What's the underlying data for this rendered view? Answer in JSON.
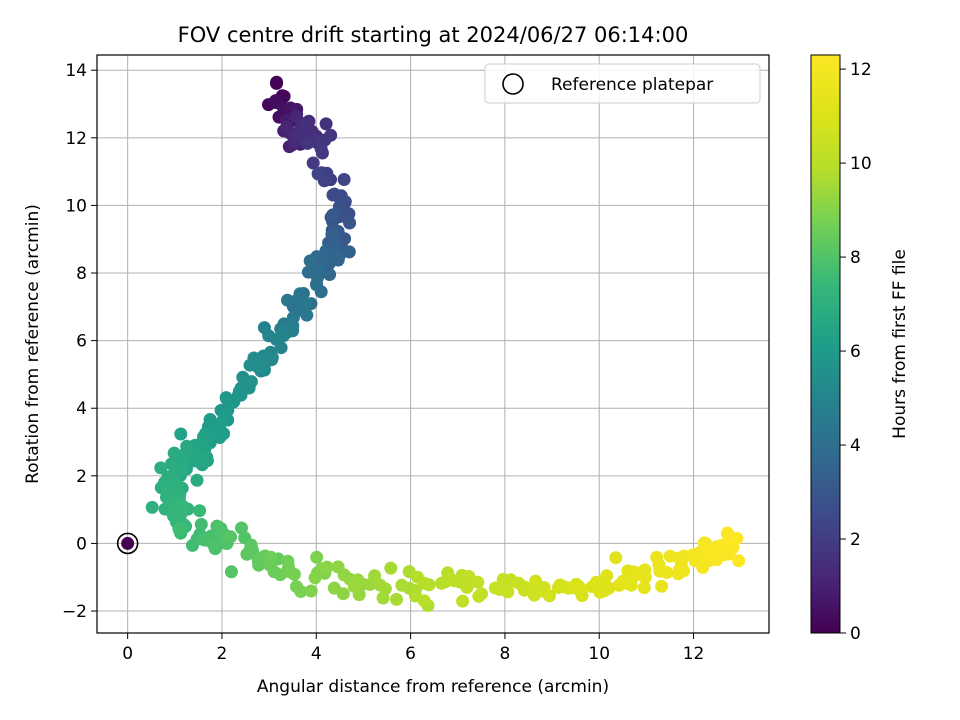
{
  "chart_data": {
    "type": "scatter",
    "title": "FOV centre drift starting at 2024/06/27 06:14:00",
    "xlabel": "Angular distance from reference (arcmin)",
    "ylabel": "Rotation from reference (arcmin)",
    "xlim": [
      -0.65,
      13.6
    ],
    "ylim": [
      -2.65,
      14.45
    ],
    "xticks": [
      0,
      2,
      4,
      6,
      8,
      10,
      12
    ],
    "yticks": [
      -2,
      0,
      2,
      4,
      6,
      8,
      10,
      12,
      14
    ],
    "grid": true,
    "legend": {
      "position": "top-right",
      "entries": [
        "Reference platepar"
      ]
    },
    "colorbar": {
      "label": "Hours from first FF file",
      "colormap": "viridis",
      "range": [
        0,
        12.3
      ],
      "ticks": [
        0,
        2,
        4,
        6,
        8,
        10,
        12
      ]
    },
    "reference_point": {
      "x": 0,
      "y": 0
    },
    "path_anchors": {
      "x": [
        3.2,
        3.5,
        4.0,
        4.5,
        4.4,
        4.0,
        3.3,
        2.6,
        2.0,
        1.5,
        1.0,
        0.8,
        1.3,
        2.2,
        3.3,
        4.8,
        6.5,
        8.3,
        9.9,
        11.2,
        12.3,
        12.9
      ],
      "y": [
        13.4,
        12.2,
        12.1,
        9.9,
        8.7,
        7.8,
        6.3,
        5.0,
        3.6,
        2.8,
        2.2,
        1.2,
        0.5,
        0.0,
        -0.7,
        -1.2,
        -1.3,
        -1.3,
        -1.3,
        -0.9,
        -0.4,
        -0.1
      ],
      "t": [
        0.0,
        1.0,
        1.6,
        2.6,
        3.4,
        3.9,
        4.8,
        5.5,
        6.0,
        6.4,
        6.8,
        7.1,
        7.5,
        8.0,
        8.6,
        9.3,
        9.9,
        10.5,
        11.0,
        11.5,
        12.0,
        12.3
      ]
    },
    "point_count": 420
  }
}
